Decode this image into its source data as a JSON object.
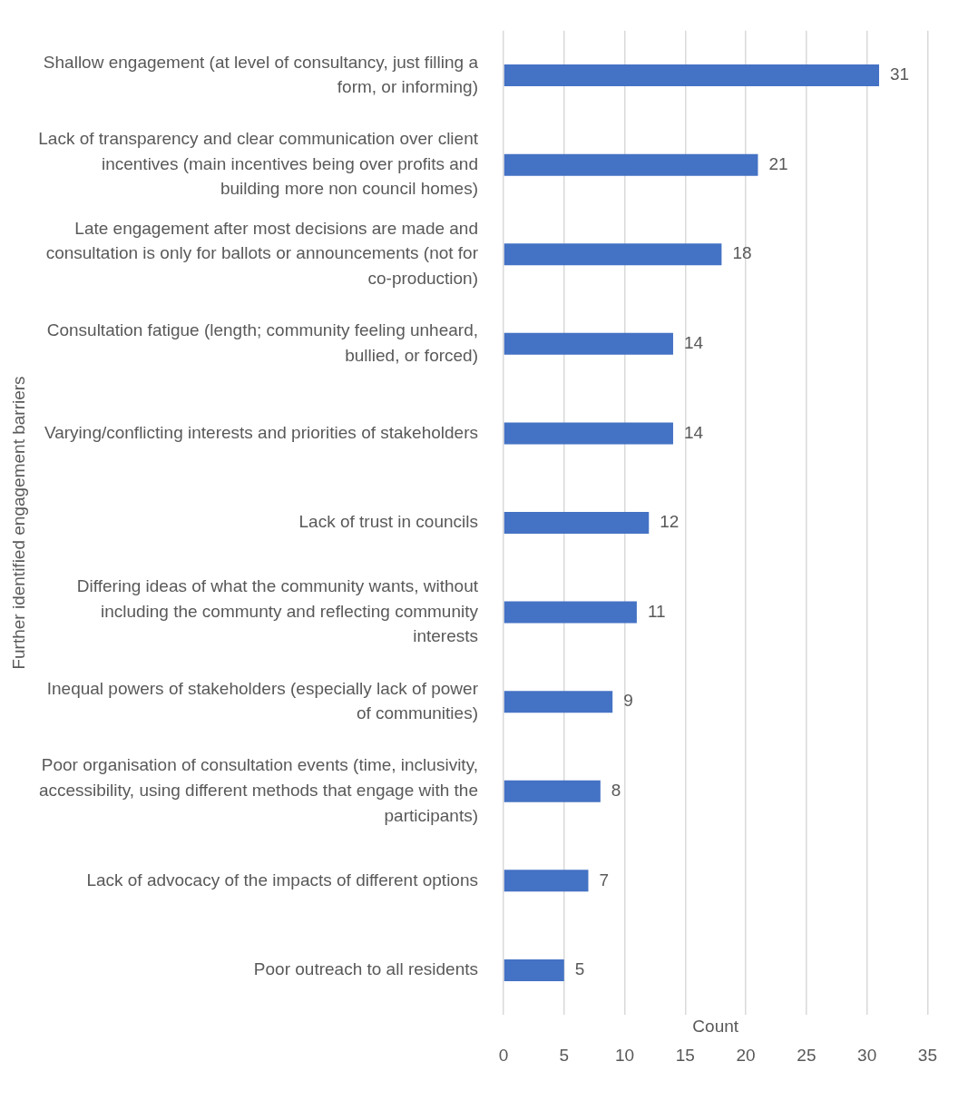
{
  "chart_data": {
    "type": "bar",
    "orientation": "horizontal",
    "categories": [
      "Shallow engagement (at level of consultancy, just filling a form, or informing)",
      "Lack of transparency and clear communication over client incentives (main incentives being over profits and building more non council homes)",
      "Late engagement after most decisions are made and consultation is only for ballots or announcements (not for co-production)",
      "Consultation fatigue (length; community feeling unheard, bullied, or forced)",
      "Varying/conflicting interests and priorities of stakeholders",
      "Lack of trust in councils",
      "Differing ideas of what the community wants, without including the communty and reflecting community interests",
      "Inequal powers of stakeholders (especially lack of power of communities)",
      "Poor organisation of consultation events (time, inclusivity, accessibility, using different methods that engage with the participants)",
      "Lack of advocacy of the impacts of different options",
      "Poor outreach to all residents"
    ],
    "values": [
      31,
      21,
      18,
      14,
      14,
      12,
      11,
      9,
      8,
      7,
      5
    ],
    "color": "#4472c4",
    "xlabel": "Count",
    "ylabel": "Further identified engagement barriers",
    "xlim": [
      0,
      35
    ],
    "xticks": [
      0,
      5,
      10,
      15,
      20,
      25,
      30,
      35
    ],
    "grid": "x",
    "data_labels": true,
    "legend": false
  }
}
